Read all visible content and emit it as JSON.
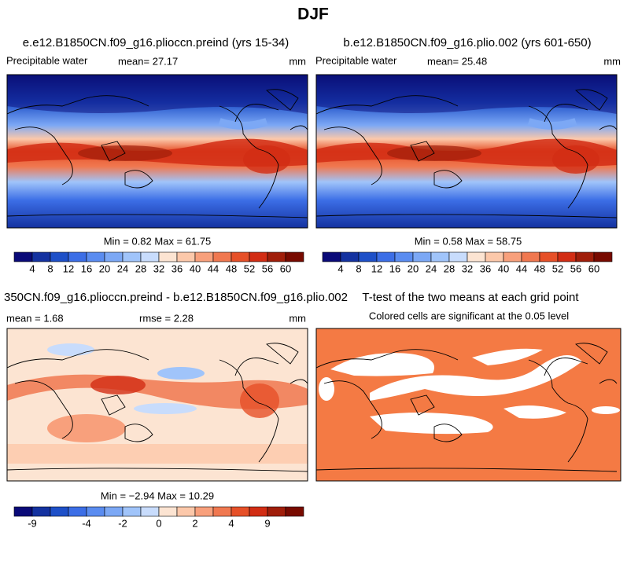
{
  "title": "DJF",
  "panels": [
    {
      "title": "e.e12.B1850CN.f09_g16.plioccn.preind (yrs 15-34)",
      "left": "Precipitable water",
      "center": "mean=  27.17",
      "right": "mm",
      "stats": "Min =   0.82 Max =  61.75",
      "colorbar": {
        "labels": [
          4,
          8,
          12,
          16,
          20,
          24,
          28,
          32,
          36,
          40,
          44,
          48,
          52,
          56,
          60
        ],
        "colors": [
          "#0a0a78",
          "#1432a0",
          "#1e50c8",
          "#3c6ee6",
          "#5a8cf0",
          "#7ca8f5",
          "#a0c4fa",
          "#c8dcfc",
          "#fce4d2",
          "#fcc8aa",
          "#f8a07c",
          "#f07850",
          "#e65028",
          "#d22d14",
          "#a01e0a",
          "#780a00"
        ]
      }
    },
    {
      "title": "b.e12.B1850CN.f09_g16.plio.002 (yrs 601-650)",
      "left": "Precipitable water",
      "center": "mean=  25.48",
      "right": "mm",
      "stats": "Min =   0.58 Max =  58.75",
      "colorbar": {
        "labels": [
          4,
          8,
          12,
          16,
          20,
          24,
          28,
          32,
          36,
          40,
          44,
          48,
          52,
          56,
          60
        ],
        "colors": [
          "#0a0a78",
          "#1432a0",
          "#1e50c8",
          "#3c6ee6",
          "#5a8cf0",
          "#7ca8f5",
          "#a0c4fa",
          "#c8dcfc",
          "#fce4d2",
          "#fcc8aa",
          "#f8a07c",
          "#f07850",
          "#e65028",
          "#d22d14",
          "#a01e0a",
          "#780a00"
        ]
      }
    },
    {
      "title": "350CN.f09_g16.plioccn.preind - b.e12.B1850CN.f09_g16.plio.002",
      "left": "mean =    1.68",
      "center": "rmse =    2.28",
      "right": "mm",
      "stats": "Min =  −2.94 Max =  10.29",
      "colorbar": {
        "labels": [
          -9,
          -4,
          -2,
          0,
          2,
          4,
          9
        ],
        "colors": [
          "#0a0a78",
          "#1432a0",
          "#1e50c8",
          "#3c6ee6",
          "#5a8cf0",
          "#7ca8f5",
          "#a0c4fa",
          "#c8dcfc",
          "#fce4d2",
          "#fcc8aa",
          "#f8a07c",
          "#f07850",
          "#e65028",
          "#d22d14",
          "#a01e0a",
          "#780a00"
        ]
      }
    },
    {
      "title": "T-test of the two means at each grid point",
      "subtitle": "Colored cells are significant at the 0.05 level"
    }
  ]
}
